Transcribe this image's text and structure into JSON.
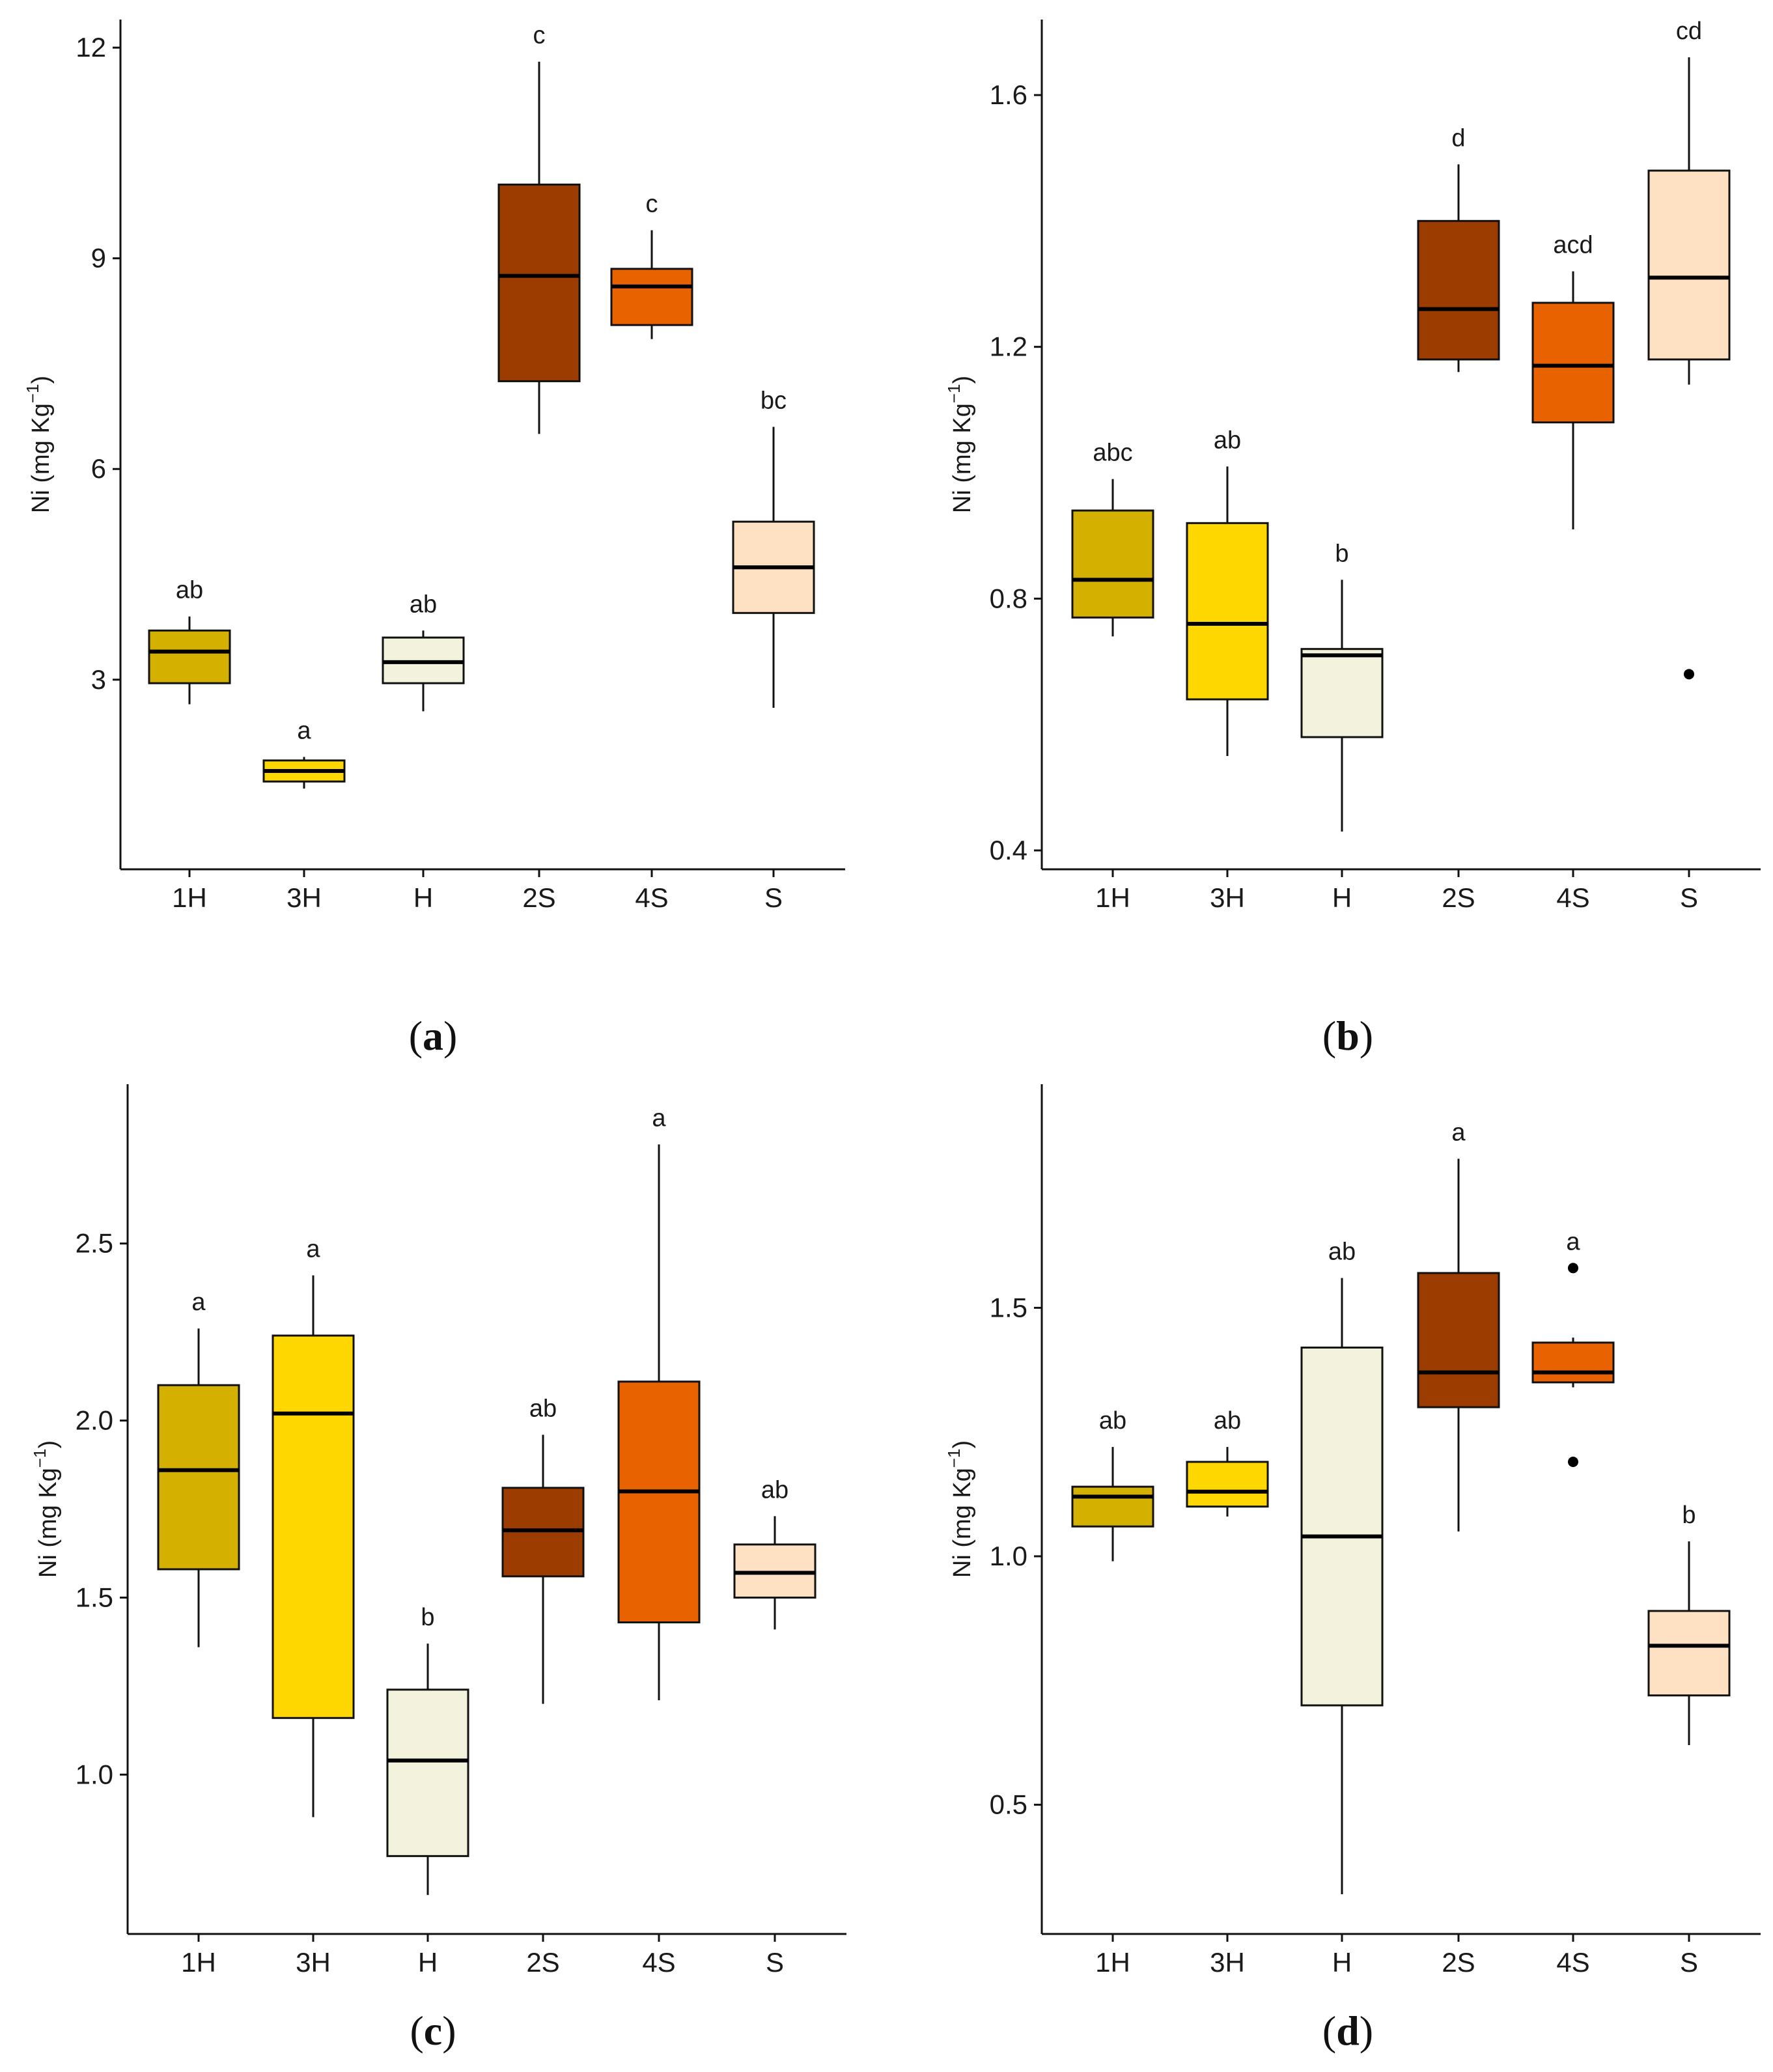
{
  "colors": {
    "1H": "#d4b000",
    "3H": "#ffd700",
    "H": "#f3f2dc",
    "2S": "#9c3c00",
    "4S": "#e86300",
    "S": "#fee1c3"
  },
  "chart_data": [
    {
      "type": "box",
      "panel_label": "a",
      "ylabel": "Ni (mg Kg⁻¹)",
      "ylabel_main": "Ni (mg Kg",
      "ylabel_sup": "−1",
      "ylabel_close": ")",
      "ylim": [
        0.3,
        12.4
      ],
      "yticks": [
        3,
        6,
        9,
        12
      ],
      "yticklabels": [
        "3",
        "6",
        "9",
        "12"
      ],
      "categories": [
        "1H",
        "3H",
        "H",
        "2S",
        "4S",
        "S"
      ],
      "boxes": [
        {
          "group": "1H",
          "min": 2.65,
          "q1": 2.95,
          "median": 3.4,
          "q3": 3.7,
          "max": 3.9,
          "outliers": [],
          "letter": "ab"
        },
        {
          "group": "3H",
          "min": 1.45,
          "q1": 1.55,
          "median": 1.7,
          "q3": 1.85,
          "max": 1.9,
          "outliers": [],
          "letter": "a"
        },
        {
          "group": "H",
          "min": 2.55,
          "q1": 2.95,
          "median": 3.25,
          "q3": 3.6,
          "max": 3.7,
          "outliers": [],
          "letter": "ab"
        },
        {
          "group": "2S",
          "min": 6.5,
          "q1": 7.25,
          "median": 8.75,
          "q3": 10.05,
          "max": 11.8,
          "outliers": [],
          "letter": "c"
        },
        {
          "group": "4S",
          "min": 7.85,
          "q1": 8.05,
          "median": 8.6,
          "q3": 8.85,
          "max": 9.4,
          "outliers": [],
          "letter": "c"
        },
        {
          "group": "S",
          "min": 2.6,
          "q1": 3.95,
          "median": 4.6,
          "q3": 5.25,
          "max": 6.6,
          "outliers": [],
          "letter": "bc"
        }
      ]
    },
    {
      "type": "box",
      "panel_label": "b",
      "ylabel": "Ni (mg Kg⁻¹)",
      "ylabel_main": "Ni (mg Kg",
      "ylabel_sup": "−1",
      "ylabel_close": ")",
      "ylim": [
        0.37,
        1.72
      ],
      "yticks": [
        0.4,
        0.8,
        1.2,
        1.6
      ],
      "yticklabels": [
        "0.4",
        "0.8",
        "1.2",
        "1.6"
      ],
      "categories": [
        "1H",
        "3H",
        "H",
        "2S",
        "4S",
        "S"
      ],
      "boxes": [
        {
          "group": "1H",
          "min": 0.74,
          "q1": 0.77,
          "median": 0.83,
          "q3": 0.94,
          "max": 0.99,
          "outliers": [],
          "letter": "abc"
        },
        {
          "group": "3H",
          "min": 0.55,
          "q1": 0.64,
          "median": 0.76,
          "q3": 0.92,
          "max": 1.01,
          "outliers": [],
          "letter": "ab"
        },
        {
          "group": "H",
          "min": 0.43,
          "q1": 0.58,
          "median": 0.71,
          "q3": 0.72,
          "max": 0.83,
          "outliers": [],
          "letter": "b"
        },
        {
          "group": "2S",
          "min": 1.16,
          "q1": 1.18,
          "median": 1.26,
          "q3": 1.4,
          "max": 1.49,
          "outliers": [],
          "letter": "d"
        },
        {
          "group": "4S",
          "min": 0.91,
          "q1": 1.08,
          "median": 1.17,
          "q3": 1.27,
          "max": 1.32,
          "outliers": [],
          "letter": "acd"
        },
        {
          "group": "S",
          "min": 1.14,
          "q1": 1.18,
          "median": 1.31,
          "q3": 1.48,
          "max": 1.66,
          "outliers": [
            0.68
          ],
          "letter": "cd"
        }
      ]
    },
    {
      "type": "box",
      "panel_label": "c",
      "ylabel": "Ni (mg Kg⁻¹)",
      "ylabel_main": "Ni (mg Kg",
      "ylabel_sup": "−1",
      "ylabel_close": ")",
      "ylim": [
        0.55,
        2.95
      ],
      "yticks": [
        1.0,
        1.5,
        2.0,
        2.5
      ],
      "yticklabels": [
        "1.0",
        "1.5",
        "2.0",
        "2.5"
      ],
      "categories": [
        "1H",
        "3H",
        "H",
        "2S",
        "4S",
        "S"
      ],
      "boxes": [
        {
          "group": "1H",
          "min": 1.36,
          "q1": 1.58,
          "median": 1.86,
          "q3": 2.1,
          "max": 2.26,
          "outliers": [],
          "letter": "a"
        },
        {
          "group": "3H",
          "min": 0.88,
          "q1": 1.16,
          "median": 2.02,
          "q3": 2.24,
          "max": 2.41,
          "outliers": [],
          "letter": "a"
        },
        {
          "group": "H",
          "min": 0.66,
          "q1": 0.77,
          "median": 1.04,
          "q3": 1.24,
          "max": 1.37,
          "outliers": [],
          "letter": "b"
        },
        {
          "group": "2S",
          "min": 1.2,
          "q1": 1.56,
          "median": 1.69,
          "q3": 1.81,
          "max": 1.96,
          "outliers": [],
          "letter": "ab"
        },
        {
          "group": "4S",
          "min": 1.21,
          "q1": 1.43,
          "median": 1.8,
          "q3": 2.11,
          "max": 2.78,
          "outliers": [],
          "letter": "a"
        },
        {
          "group": "S",
          "min": 1.41,
          "q1": 1.5,
          "median": 1.57,
          "q3": 1.65,
          "max": 1.73,
          "outliers": [],
          "letter": "ab"
        }
      ]
    },
    {
      "type": "box",
      "panel_label": "d",
      "ylabel": "Ni (mg Kg⁻¹)",
      "ylabel_main": "Ni (mg Kg",
      "ylabel_sup": "−1",
      "ylabel_close": ")",
      "ylim": [
        0.24,
        1.95
      ],
      "yticks": [
        0.5,
        1.0,
        1.5
      ],
      "yticklabels": [
        "0.5",
        "1.0",
        "1.5"
      ],
      "categories": [
        "1H",
        "3H",
        "H",
        "2S",
        "4S",
        "S"
      ],
      "boxes": [
        {
          "group": "1H",
          "min": 0.99,
          "q1": 1.06,
          "median": 1.12,
          "q3": 1.14,
          "max": 1.22,
          "outliers": [],
          "letter": "ab"
        },
        {
          "group": "3H",
          "min": 1.08,
          "q1": 1.1,
          "median": 1.13,
          "q3": 1.19,
          "max": 1.22,
          "outliers": [],
          "letter": "ab"
        },
        {
          "group": "H",
          "min": 0.32,
          "q1": 0.7,
          "median": 1.04,
          "q3": 1.42,
          "max": 1.56,
          "outliers": [],
          "letter": "ab"
        },
        {
          "group": "2S",
          "min": 1.05,
          "q1": 1.3,
          "median": 1.37,
          "q3": 1.57,
          "max": 1.8,
          "outliers": [],
          "letter": "a"
        },
        {
          "group": "4S",
          "min": 1.34,
          "q1": 1.35,
          "median": 1.37,
          "q3": 1.43,
          "max": 1.44,
          "outliers": [
            1.58,
            1.19
          ],
          "letter": "a"
        },
        {
          "group": "S",
          "min": 0.62,
          "q1": 0.72,
          "median": 0.82,
          "q3": 0.89,
          "max": 1.03,
          "outliers": [],
          "letter": "b"
        }
      ]
    }
  ]
}
